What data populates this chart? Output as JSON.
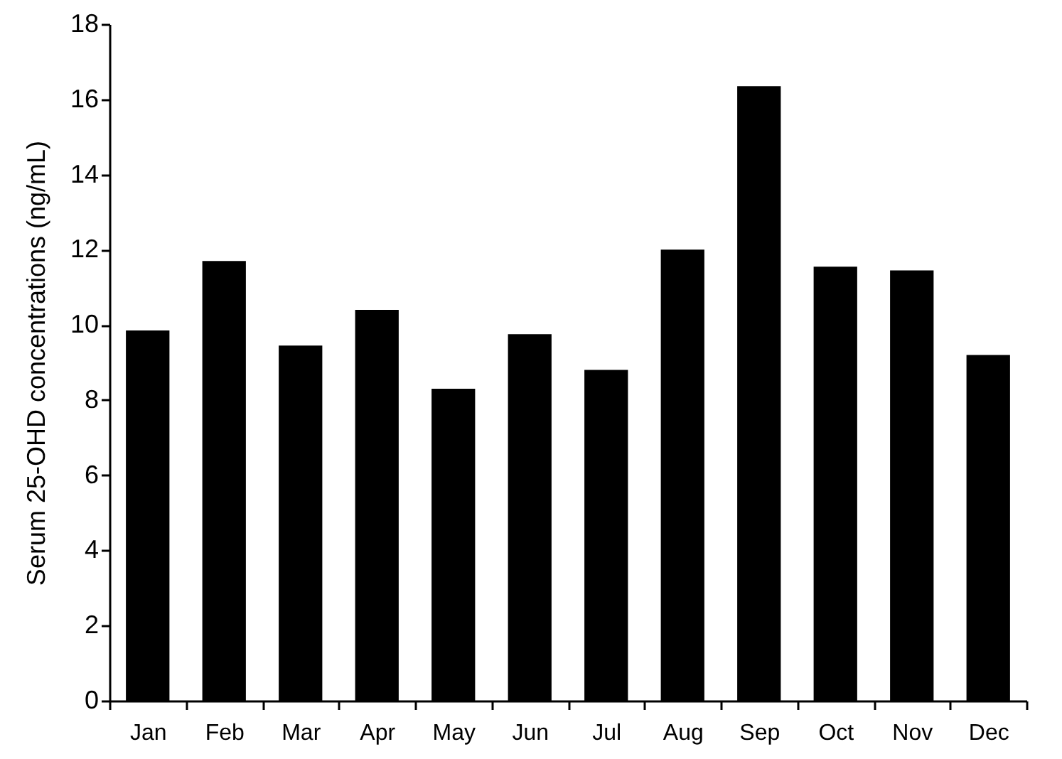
{
  "chart_data": {
    "type": "bar",
    "ylabel": "Serum 25-OHD concentrations (ng/mL)",
    "categories": [
      "Jan",
      "Feb",
      "Mar",
      "Apr",
      "May",
      "Jun",
      "Jul",
      "Aug",
      "Sep",
      "Oct",
      "Nov",
      "Dec"
    ],
    "values": [
      9.85,
      11.7,
      9.45,
      10.4,
      8.3,
      9.75,
      8.8,
      12.0,
      16.35,
      11.55,
      11.45,
      9.2
    ],
    "color": "#000000",
    "ylim": [
      0,
      18
    ],
    "yticks": [
      0,
      2,
      4,
      6,
      8,
      10,
      12,
      14,
      16,
      18
    ],
    "grid": false
  }
}
